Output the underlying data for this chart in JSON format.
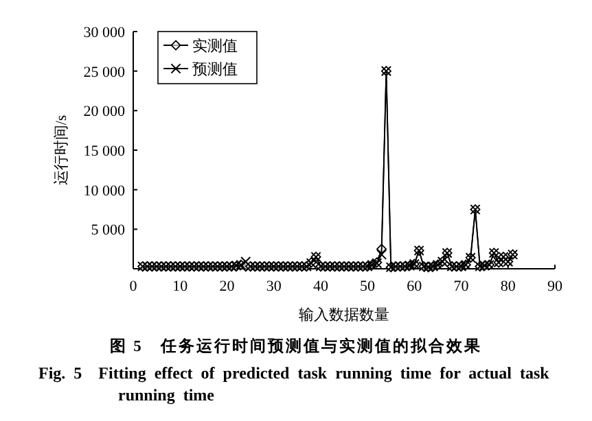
{
  "chart_data": {
    "type": "line",
    "xlabel": "输入数据数量",
    "ylabel": "运行时间/s",
    "x": [
      2,
      3,
      4,
      5,
      6,
      7,
      8,
      9,
      10,
      11,
      12,
      13,
      14,
      15,
      16,
      17,
      18,
      19,
      20,
      21,
      22,
      23,
      24,
      25,
      26,
      27,
      28,
      29,
      30,
      31,
      32,
      33,
      34,
      35,
      36,
      37,
      38,
      39,
      40,
      41,
      42,
      43,
      44,
      45,
      46,
      47,
      48,
      49,
      50,
      51,
      52,
      53,
      54,
      55,
      56,
      57,
      58,
      59,
      60,
      61,
      62,
      63,
      64,
      65,
      66,
      67,
      68,
      69,
      70,
      71,
      72,
      73,
      74,
      75,
      76,
      77,
      78,
      79,
      80,
      81
    ],
    "series": [
      {
        "name": "实测值",
        "color": "#000000",
        "marker": "diamond",
        "values": [
          300,
          300,
          300,
          300,
          300,
          300,
          300,
          300,
          300,
          300,
          300,
          300,
          300,
          300,
          300,
          300,
          300,
          300,
          300,
          300,
          300,
          500,
          300,
          300,
          300,
          300,
          300,
          300,
          300,
          300,
          300,
          300,
          300,
          300,
          300,
          300,
          800,
          1500,
          300,
          300,
          300,
          300,
          300,
          300,
          300,
          300,
          300,
          300,
          300,
          500,
          800,
          2500,
          25000,
          200,
          300,
          300,
          300,
          400,
          600,
          2300,
          300,
          200,
          300,
          500,
          900,
          2000,
          300,
          300,
          300,
          500,
          1400,
          7500,
          300,
          400,
          500,
          2000,
          800,
          1500,
          900,
          1800
        ]
      },
      {
        "name": "预测值",
        "color": "#000000",
        "marker": "cross",
        "values": [
          300,
          300,
          300,
          300,
          300,
          300,
          300,
          300,
          300,
          300,
          300,
          300,
          300,
          300,
          300,
          300,
          300,
          300,
          300,
          300,
          400,
          500,
          900,
          300,
          300,
          300,
          300,
          300,
          300,
          300,
          300,
          300,
          300,
          300,
          300,
          300,
          700,
          1500,
          300,
          300,
          300,
          300,
          300,
          300,
          300,
          300,
          300,
          300,
          300,
          500,
          700,
          1800,
          25000,
          200,
          300,
          300,
          300,
          400,
          600,
          2300,
          300,
          200,
          300,
          500,
          900,
          2000,
          300,
          300,
          300,
          500,
          1400,
          7500,
          300,
          400,
          500,
          2000,
          800,
          1500,
          900,
          1800
        ]
      }
    ],
    "xlim": [
      0,
      90
    ],
    "xticks": [
      0,
      10,
      20,
      30,
      40,
      50,
      60,
      70,
      80,
      90
    ],
    "ylim": [
      0,
      30000
    ],
    "yticks": [
      {
        "value": 5000,
        "label": "5 000"
      },
      {
        "value": 10000,
        "label": "10 000"
      },
      {
        "value": 15000,
        "label": "15 000"
      },
      {
        "value": 20000,
        "label": "20 000"
      },
      {
        "value": 25000,
        "label": "25 000"
      },
      {
        "value": 30000,
        "label": "30 000"
      }
    ],
    "line_style": "solid",
    "grid": false,
    "legend": "top left",
    "annotations": [
      "图 5　任务运行时间预测值与实测值的拟合效果",
      "Fig. 5　Fitting effect of predicted task running time for actual task running time"
    ]
  }
}
